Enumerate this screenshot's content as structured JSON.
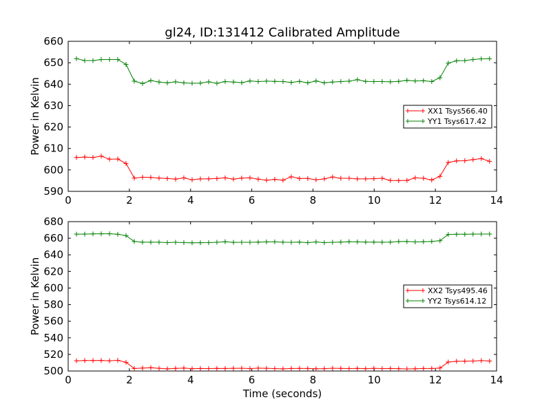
{
  "figure": {
    "title": "gl24, ID:131412 Calibrated Amplitude"
  },
  "chart_data": [
    {
      "type": "line",
      "title": "gl24, ID:131412 Calibrated Amplitude",
      "xlabel": "",
      "ylabel": "Power in Kelvin",
      "xlim": [
        0,
        14
      ],
      "ylim": [
        590,
        660
      ],
      "xticks": [
        "0",
        "2",
        "4",
        "6",
        "8",
        "10",
        "12",
        "14"
      ],
      "yticks": [
        "590",
        "600",
        "610",
        "620",
        "630",
        "640",
        "650",
        "660"
      ],
      "grid": false,
      "legend_position": "right",
      "x": [
        0.27,
        0.54,
        0.81,
        1.08,
        1.35,
        1.62,
        1.89,
        2.16,
        2.43,
        2.7,
        2.97,
        3.24,
        3.51,
        3.78,
        4.05,
        4.32,
        4.59,
        4.86,
        5.13,
        5.4,
        5.67,
        5.94,
        6.21,
        6.48,
        6.75,
        7.02,
        7.29,
        7.56,
        7.83,
        8.1,
        8.37,
        8.64,
        8.91,
        9.18,
        9.45,
        9.72,
        9.99,
        10.26,
        10.53,
        10.8,
        11.07,
        11.34,
        11.61,
        11.88,
        12.15,
        12.42,
        12.69,
        12.96,
        13.23,
        13.5,
        13.77
      ],
      "series": [
        {
          "name": "XX1 Tsys566.40",
          "color": "#ff0000",
          "values": [
            605.8,
            606.0,
            605.8,
            606.4,
            605.0,
            605.1,
            603.0,
            596.2,
            596.6,
            596.5,
            596.2,
            596.0,
            595.7,
            596.3,
            595.4,
            595.8,
            595.8,
            596.0,
            596.3,
            595.7,
            596.2,
            596.3,
            595.7,
            595.2,
            595.6,
            595.2,
            596.8,
            596.0,
            596.0,
            595.4,
            595.8,
            596.7,
            596.1,
            596.1,
            595.8,
            595.8,
            595.9,
            596.1,
            595.1,
            595.0,
            595.1,
            596.3,
            596.1,
            595.3,
            597.0,
            603.5,
            604.2,
            604.3,
            604.8,
            605.3,
            604.0
          ]
        },
        {
          "name": "YY1 Tsys617.42",
          "color": "#008000",
          "values": [
            651.9,
            651.0,
            651.0,
            651.5,
            651.5,
            651.5,
            649.2,
            641.4,
            640.3,
            641.7,
            641.0,
            640.6,
            641.1,
            640.6,
            640.4,
            640.5,
            641.1,
            640.4,
            641.2,
            641.0,
            640.7,
            641.5,
            641.2,
            641.4,
            641.3,
            641.2,
            640.8,
            641.3,
            640.6,
            641.5,
            640.6,
            641.0,
            641.2,
            641.4,
            642.1,
            641.3,
            641.2,
            641.2,
            641.1,
            641.3,
            641.8,
            641.5,
            641.6,
            641.2,
            643.0,
            649.8,
            650.9,
            651.0,
            651.5,
            651.8,
            651.9
          ]
        }
      ]
    },
    {
      "type": "line",
      "title": "",
      "xlabel": "Time (seconds)",
      "ylabel": "Power in Kelvin",
      "xlim": [
        0,
        14
      ],
      "ylim": [
        500,
        680
      ],
      "xticks": [
        "0",
        "2",
        "4",
        "6",
        "8",
        "10",
        "12",
        "14"
      ],
      "yticks": [
        "500",
        "520",
        "540",
        "560",
        "580",
        "600",
        "620",
        "640",
        "660",
        "680"
      ],
      "grid": false,
      "legend_position": "right",
      "x": [
        0.27,
        0.54,
        0.81,
        1.08,
        1.35,
        1.62,
        1.89,
        2.16,
        2.43,
        2.7,
        2.97,
        3.24,
        3.51,
        3.78,
        4.05,
        4.32,
        4.59,
        4.86,
        5.13,
        5.4,
        5.67,
        5.94,
        6.21,
        6.48,
        6.75,
        7.02,
        7.29,
        7.56,
        7.83,
        8.1,
        8.37,
        8.64,
        8.91,
        9.18,
        9.45,
        9.72,
        9.99,
        10.26,
        10.53,
        10.8,
        11.07,
        11.34,
        11.61,
        11.88,
        12.15,
        12.42,
        12.69,
        12.96,
        13.23,
        13.5,
        13.77
      ],
      "series": [
        {
          "name": "XX2 Tsys495.46",
          "color": "#ff0000",
          "values": [
            512.3,
            512.6,
            512.7,
            512.8,
            512.3,
            512.9,
            510.5,
            503.0,
            503.6,
            504.0,
            503.2,
            502.6,
            503.1,
            503.5,
            502.8,
            503.0,
            502.9,
            503.1,
            503.0,
            503.2,
            503.3,
            502.9,
            503.4,
            503.2,
            502.9,
            502.6,
            503.0,
            503.1,
            503.0,
            502.7,
            502.8,
            503.3,
            503.1,
            502.9,
            503.1,
            502.8,
            503.2,
            502.9,
            503.0,
            502.8,
            502.5,
            502.7,
            503.0,
            503.0,
            503.6,
            510.8,
            511.7,
            511.8,
            512.0,
            512.5,
            512.0
          ]
        },
        {
          "name": "YY2 Tsys614.12",
          "color": "#008000",
          "values": [
            665.0,
            665.0,
            665.3,
            665.4,
            665.4,
            664.8,
            663.2,
            656.1,
            655.2,
            655.2,
            655.2,
            654.7,
            655.1,
            654.7,
            654.5,
            654.6,
            654.7,
            655.1,
            655.8,
            655.0,
            655.1,
            655.1,
            655.3,
            655.6,
            655.6,
            655.2,
            655.1,
            655.3,
            654.7,
            655.5,
            654.7,
            655.1,
            655.4,
            655.8,
            655.6,
            655.4,
            655.3,
            655.2,
            655.3,
            656.0,
            656.1,
            655.5,
            655.8,
            656.2,
            657.0,
            664.5,
            664.8,
            664.8,
            665.0,
            665.1,
            665.1
          ]
        }
      ]
    }
  ]
}
